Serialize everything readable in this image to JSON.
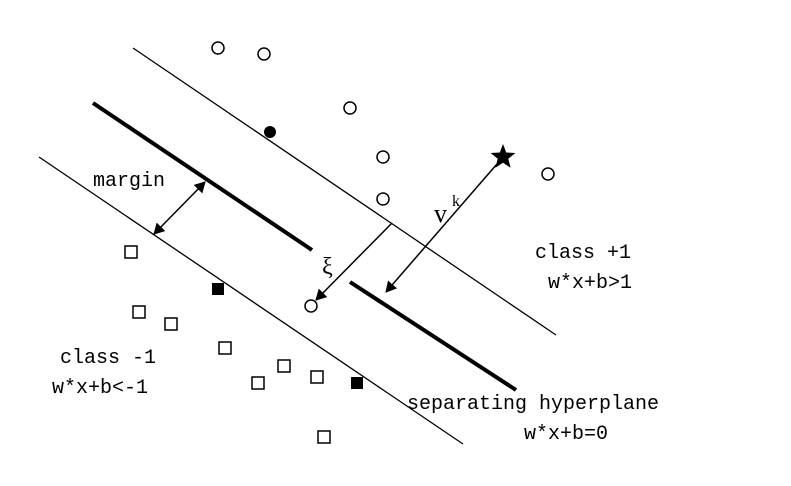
{
  "labels": {
    "margin": "margin",
    "xi": "ξ",
    "v": "v",
    "k": "k",
    "class_pos": "class +1",
    "class_pos_rule": "w*x+b>1",
    "class_neg": "class -1",
    "class_neg_rule": "w*x+b<-1",
    "hyperplane": "separating hyperplane",
    "hyperplane_rule": "w*x+b=0"
  },
  "colors": {
    "ink": "#000000",
    "background": "#ffffff"
  },
  "markers": {
    "positive": "hollow-circle",
    "positive_support": "filled-circle",
    "negative": "hollow-square",
    "negative_support": "filled-square",
    "query": "star"
  }
}
